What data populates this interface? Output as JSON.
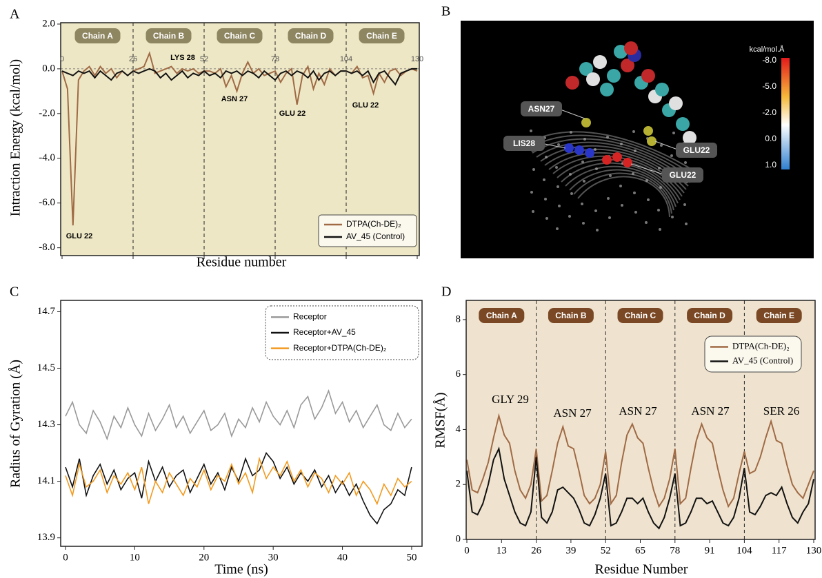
{
  "chart_data": [
    {
      "type": "line",
      "panel": "A",
      "xlabel": "Residue number",
      "ylabel": "Intraction Energy (kcal/mol)",
      "xlim": [
        0,
        130
      ],
      "ylim": [
        -8.35,
        2.06
      ],
      "xticks": [
        0,
        26,
        52,
        78,
        104,
        130
      ],
      "yticks": [
        {
          "value": -8,
          "label": "-8.0"
        },
        {
          "value": -6,
          "label": "-6.0"
        },
        {
          "value": -4,
          "label": "-4.0"
        },
        {
          "value": -2,
          "label": "-2.0"
        },
        {
          "value": 0,
          "label": "0.0"
        },
        {
          "value": 2,
          "label": "2.0"
        }
      ],
      "chains": [
        "Chain A",
        "Chain B",
        "Chain C",
        "Chain D",
        "Chain E"
      ],
      "annotations": [
        "GLU 22",
        "LYS 28",
        "ASN 27",
        "GLU 22",
        "GLU 22"
      ],
      "x": [
        0,
        2,
        4,
        6,
        8,
        10,
        12,
        14,
        16,
        18,
        20,
        22,
        24,
        26,
        28,
        30,
        32,
        34,
        36,
        38,
        40,
        42,
        44,
        46,
        48,
        50,
        52,
        54,
        56,
        58,
        60,
        62,
        64,
        66,
        68,
        70,
        72,
        74,
        76,
        78,
        80,
        82,
        84,
        86,
        88,
        90,
        92,
        94,
        96,
        98,
        100,
        102,
        104,
        106,
        108,
        110,
        112,
        114,
        116,
        118,
        120,
        122,
        124,
        126,
        128,
        130
      ],
      "series": [
        {
          "name": "DTPA(Ch-DE)₂",
          "color": "#a06a45",
          "values": [
            -0.1,
            -0.9,
            -7.0,
            -0.5,
            -0.1,
            0.1,
            -0.3,
            0.1,
            -0.2,
            0.0,
            -0.4,
            -0.1,
            -0.3,
            -0.1,
            0.0,
            0.1,
            0.7,
            -0.2,
            -0.1,
            0.0,
            0.1,
            -0.2,
            0.0,
            -0.1,
            0.0,
            -0.2,
            -0.1,
            -0.1,
            -0.2,
            0.0,
            -0.8,
            -0.3,
            -1.0,
            -0.2,
            0.3,
            -0.2,
            0.0,
            -0.3,
            -0.2,
            -0.1,
            -0.6,
            -0.2,
            0.0,
            -1.6,
            -0.3,
            0.1,
            -0.9,
            -0.2,
            -0.7,
            0.0,
            -0.3,
            -0.1,
            -0.1,
            -0.2,
            0.1,
            -0.4,
            -0.3,
            -1.1,
            -0.2,
            -0.6,
            -0.1,
            0.0,
            -0.3,
            -0.1,
            0.0,
            -0.1
          ]
        },
        {
          "name": "AV_45 (Control)",
          "color": "#111111",
          "values": [
            -0.1,
            -0.2,
            -0.3,
            -0.1,
            -0.2,
            -0.1,
            -0.4,
            -0.1,
            -0.3,
            -0.5,
            -0.2,
            -0.1,
            -0.3,
            -0.1,
            -0.2,
            -0.1,
            0.0,
            -0.1,
            -0.4,
            -0.2,
            -0.5,
            -0.3,
            -0.1,
            -0.4,
            -0.2,
            -0.3,
            -0.1,
            -0.3,
            -0.2,
            -0.4,
            -0.1,
            -0.2,
            -0.1,
            -0.3,
            -0.1,
            -0.2,
            -0.4,
            -0.1,
            -0.3,
            -0.5,
            -0.2,
            -0.1,
            -0.3,
            -0.1,
            -0.2,
            -0.4,
            -0.1,
            -0.5,
            -0.2,
            -0.1,
            -0.3,
            -0.1,
            -0.1,
            -0.2,
            -0.1,
            -0.3,
            -0.1,
            -0.6,
            -0.2,
            -0.1,
            -0.4,
            -0.7,
            -0.2,
            -0.1,
            0.0,
            0.0
          ]
        }
      ]
    },
    {
      "type": "image",
      "panel": "B",
      "colorbar_title": "kcal/mol.Å",
      "colorbar_ticks": [
        {
          "value": -8,
          "label": "-8.0"
        },
        {
          "value": -5,
          "label": "-5.0"
        },
        {
          "value": -2,
          "label": "-2.0"
        },
        {
          "value": 0,
          "label": "0.0"
        },
        {
          "value": 1,
          "label": "1.0"
        }
      ],
      "labels": [
        "ASN27",
        "LIS28",
        "GLU22",
        "GLU22"
      ]
    },
    {
      "type": "line",
      "panel": "C",
      "xlabel": "Time (ns)",
      "ylabel": "Radius of Gyration (Å)",
      "xlim": [
        -0.7,
        51.5
      ],
      "ylim": [
        13.87,
        14.74
      ],
      "xticks": [
        0,
        10,
        20,
        30,
        40,
        50
      ],
      "yticks": [
        13.9,
        14.1,
        14.3,
        14.5,
        14.7
      ],
      "x": [
        0,
        1,
        2,
        3,
        4,
        5,
        6,
        7,
        8,
        9,
        10,
        11,
        12,
        13,
        14,
        15,
        16,
        17,
        18,
        19,
        20,
        21,
        22,
        23,
        24,
        25,
        26,
        27,
        28,
        29,
        30,
        31,
        32,
        33,
        34,
        35,
        36,
        37,
        38,
        39,
        40,
        41,
        42,
        43,
        44,
        45,
        46,
        47,
        48,
        49,
        50
      ],
      "series": [
        {
          "name": "Receptor",
          "color": "#999999",
          "values": [
            14.33,
            14.38,
            14.3,
            14.27,
            14.35,
            14.31,
            14.25,
            14.33,
            14.29,
            14.36,
            14.3,
            14.26,
            14.34,
            14.28,
            14.32,
            14.37,
            14.29,
            14.33,
            14.27,
            14.31,
            14.35,
            14.28,
            14.3,
            14.34,
            14.26,
            14.32,
            14.29,
            14.36,
            14.31,
            14.38,
            14.33,
            14.3,
            14.35,
            14.29,
            14.37,
            14.4,
            14.32,
            14.36,
            14.42,
            14.34,
            14.38,
            14.31,
            14.35,
            14.29,
            14.33,
            14.37,
            14.3,
            14.28,
            14.34,
            14.29,
            14.32
          ]
        },
        {
          "name": "Receptor+AV_45",
          "color": "#111111",
          "values": [
            14.15,
            14.08,
            14.18,
            14.05,
            14.12,
            14.16,
            14.09,
            14.14,
            14.07,
            14.11,
            14.13,
            14.04,
            14.17,
            14.1,
            14.15,
            14.08,
            14.12,
            14.14,
            14.06,
            14.11,
            14.16,
            14.09,
            14.13,
            14.07,
            14.15,
            14.1,
            14.18,
            14.12,
            14.14,
            14.2,
            14.17,
            14.11,
            14.15,
            14.09,
            14.13,
            14.1,
            14.14,
            14.08,
            14.12,
            14.06,
            14.1,
            14.05,
            14.09,
            14.03,
            13.98,
            13.95,
            14.0,
            14.02,
            14.07,
            14.05,
            14.15
          ]
        },
        {
          "name": "Receptor+DTPA(Ch-DE)₂",
          "color": "#f29a1e",
          "values": [
            14.12,
            14.05,
            14.16,
            14.08,
            14.1,
            14.14,
            14.06,
            14.12,
            14.09,
            14.13,
            14.07,
            14.15,
            14.02,
            14.1,
            14.06,
            14.13,
            14.09,
            14.05,
            14.11,
            14.08,
            14.14,
            14.07,
            14.12,
            14.1,
            14.16,
            14.09,
            14.13,
            14.06,
            14.18,
            14.11,
            14.15,
            14.12,
            14.17,
            14.1,
            14.14,
            14.08,
            14.13,
            14.11,
            14.06,
            14.12,
            14.09,
            14.13,
            14.05,
            14.1,
            14.07,
            14.02,
            14.09,
            14.05,
            14.11,
            14.08,
            14.1
          ]
        }
      ]
    },
    {
      "type": "line",
      "panel": "D",
      "xlabel": "Residue Number",
      "ylabel": "RMSF(Å)",
      "xlim": [
        0,
        130
      ],
      "ylim": [
        0,
        8.7
      ],
      "xticks": [
        0,
        13,
        26,
        39,
        52,
        65,
        78,
        91,
        104,
        117,
        130
      ],
      "yticks": [
        0,
        2,
        4,
        6,
        8
      ],
      "chains": [
        "Chain A",
        "Chain B",
        "Chain C",
        "Chain D",
        "Chain E"
      ],
      "annotations": [
        "GLY 29",
        "ASN 27",
        "ASN 27",
        "ASN 27",
        "SER 26"
      ],
      "x": [
        0,
        2,
        4,
        6,
        8,
        10,
        12,
        14,
        16,
        18,
        20,
        22,
        24,
        26,
        28,
        30,
        32,
        34,
        36,
        38,
        40,
        42,
        44,
        46,
        48,
        50,
        52,
        54,
        56,
        58,
        60,
        62,
        64,
        66,
        68,
        70,
        72,
        74,
        76,
        78,
        80,
        82,
        84,
        86,
        88,
        90,
        92,
        94,
        96,
        98,
        100,
        102,
        104,
        106,
        108,
        110,
        112,
        114,
        116,
        118,
        120,
        122,
        124,
        126,
        128,
        130
      ],
      "series": [
        {
          "name": "DTPA(Ch-DE)₂",
          "color": "#a06a45",
          "values": [
            2.9,
            1.8,
            1.7,
            2.2,
            2.8,
            3.7,
            4.5,
            3.8,
            3.5,
            2.5,
            1.8,
            1.5,
            2.0,
            3.3,
            1.4,
            1.6,
            2.5,
            3.5,
            4.1,
            3.4,
            3.3,
            2.5,
            1.6,
            1.3,
            1.5,
            2.0,
            3.2,
            1.3,
            1.6,
            2.8,
            3.8,
            4.2,
            3.7,
            3.5,
            2.6,
            1.8,
            1.2,
            1.5,
            2.2,
            3.3,
            1.3,
            1.5,
            2.6,
            3.6,
            4.2,
            3.7,
            3.5,
            2.6,
            1.8,
            1.2,
            1.5,
            2.4,
            3.2,
            2.4,
            2.5,
            3.0,
            3.7,
            4.3,
            3.6,
            3.5,
            2.7,
            2.0,
            1.7,
            1.5,
            2.0,
            2.5
          ]
        },
        {
          "name": "AV_45 (Control)",
          "color": "#111111",
          "values": [
            2.5,
            1.0,
            0.9,
            1.3,
            2.0,
            2.9,
            3.3,
            2.2,
            1.6,
            1.0,
            0.6,
            0.5,
            1.0,
            3.0,
            0.8,
            0.6,
            1.0,
            1.8,
            1.9,
            1.7,
            1.5,
            1.1,
            0.6,
            0.5,
            0.9,
            1.5,
            2.4,
            0.5,
            0.6,
            1.0,
            1.5,
            1.5,
            1.3,
            1.5,
            1.0,
            0.6,
            0.4,
            0.8,
            1.5,
            2.4,
            0.5,
            0.6,
            1.0,
            1.5,
            1.5,
            1.3,
            1.4,
            1.0,
            0.6,
            0.5,
            0.8,
            1.5,
            2.6,
            1.0,
            0.9,
            1.2,
            1.6,
            1.7,
            1.6,
            1.9,
            1.3,
            0.8,
            0.6,
            1.0,
            1.3,
            2.2
          ]
        }
      ]
    }
  ]
}
